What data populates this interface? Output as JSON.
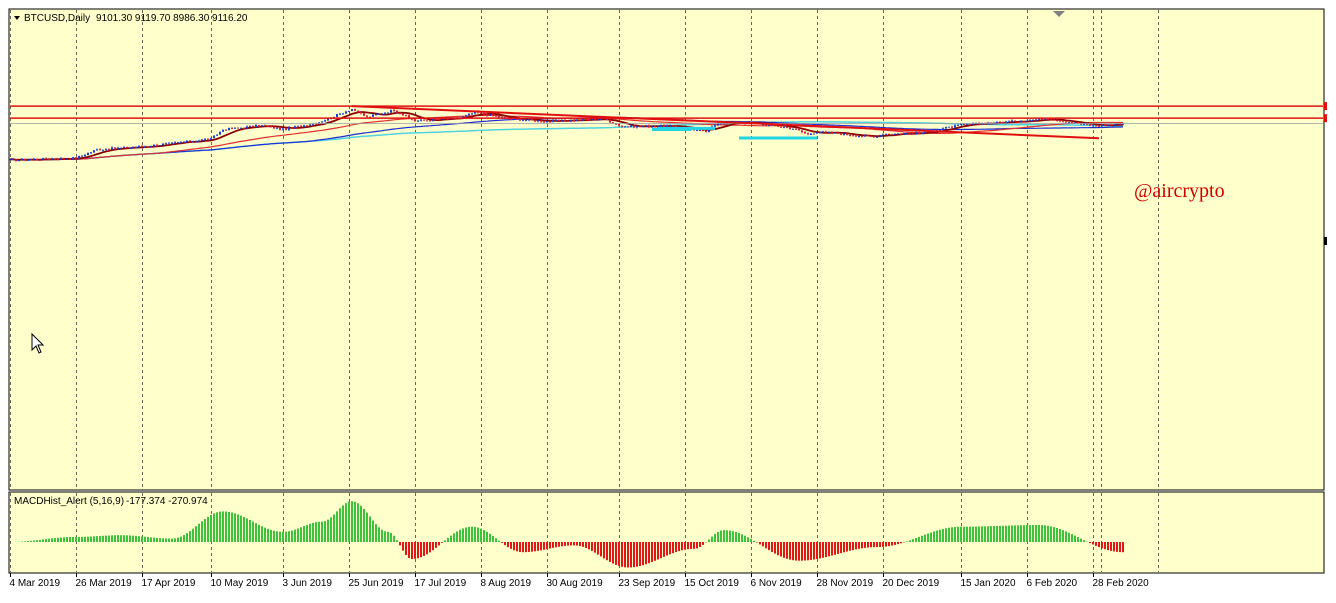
{
  "header": {
    "symbol_timeframe": "BTCUSD,Daily",
    "ohlc": "9101.30 9119.70 8986.30 9116.20"
  },
  "watermark": "@aircrypto",
  "indicator": {
    "name": "MACDHist_Alert (5,16,9)",
    "values": "-177.374 -270.974"
  },
  "colors": {
    "background": "#ffffcc",
    "bull_candle": "#1a3fd9",
    "bear_candle": "#d21f3c",
    "trendline": "#e01010",
    "ma_fast": "#8b0000",
    "ma_slow_red": "#e03030",
    "ma_blue": "#1e2fd0",
    "ma_cyan": "#4fd3e0",
    "hist_pos": "#3cc23c",
    "hist_neg": "#e01818",
    "support_line": "#22d4e4"
  },
  "chart_data": {
    "type": "candlestick",
    "title": "BTCUSD,Daily",
    "x_tick_labels": [
      "4 Mar 2019",
      "26 Mar 2019",
      "17 Apr 2019",
      "10 May 2019",
      "3 Jun 2019",
      "25 Jun 2019",
      "17 Jul 2019",
      "8 Aug 2019",
      "30 Aug 2019",
      "23 Sep 2019",
      "15 Oct 2019",
      "6 Nov 2019",
      "28 Nov 2019",
      "20 Dec 2019",
      "15 Jan 2020",
      "6 Feb 2020",
      "28 Feb 2020"
    ],
    "close_path": [
      {
        "date": "4 Mar 2019",
        "close": 3800
      },
      {
        "date": "26 Mar 2019",
        "close": 4000
      },
      {
        "date": "2 Apr 2019",
        "close": 4900
      },
      {
        "date": "17 Apr 2019",
        "close": 5250
      },
      {
        "date": "10 May 2019",
        "close": 6300
      },
      {
        "date": "14 May 2019",
        "close": 7900
      },
      {
        "date": "27 May 2019",
        "close": 8700
      },
      {
        "date": "3 Jun 2019",
        "close": 7900
      },
      {
        "date": "15 Jun 2019",
        "close": 9400
      },
      {
        "date": "26 Jun 2019",
        "close": 12900
      },
      {
        "date": "1 Jul 2019",
        "close": 10600
      },
      {
        "date": "10 Jul 2019",
        "close": 12600
      },
      {
        "date": "17 Jul 2019",
        "close": 9700
      },
      {
        "date": "1 Aug 2019",
        "close": 10400
      },
      {
        "date": "6 Aug 2019",
        "close": 11900
      },
      {
        "date": "17 Aug 2019",
        "close": 10200
      },
      {
        "date": "30 Aug 2019",
        "close": 9600
      },
      {
        "date": "18 Sep 2019",
        "close": 10200
      },
      {
        "date": "24 Sep 2019",
        "close": 8500
      },
      {
        "date": "10 Oct 2019",
        "close": 8600
      },
      {
        "date": "22 Oct 2019",
        "close": 7500
      },
      {
        "date": "26 Oct 2019",
        "close": 9300
      },
      {
        "date": "6 Nov 2019",
        "close": 9300
      },
      {
        "date": "20 Nov 2019",
        "close": 8100
      },
      {
        "date": "25 Nov 2019",
        "close": 7000
      },
      {
        "date": "28 Nov 2019",
        "close": 7500
      },
      {
        "date": "17 Dec 2019",
        "close": 6600
      },
      {
        "date": "20 Dec 2019",
        "close": 7150
      },
      {
        "date": "1 Jan 2020",
        "close": 7200
      },
      {
        "date": "15 Jan 2020",
        "close": 8800
      },
      {
        "date": "6 Feb 2020",
        "close": 9800
      },
      {
        "date": "13 Feb 2020",
        "close": 10300
      },
      {
        "date": "28 Feb 2020",
        "close": 8600
      },
      {
        "date": "9 Mar 2020",
        "close": 9116.2
      }
    ],
    "horizontal_lines": [
      13800,
      10350
    ],
    "trendline": {
      "from": {
        "date": "26 Jun 2019",
        "price": 13800
      },
      "to": {
        "date": "1 Mar 2020",
        "price": 6400
      }
    },
    "macd_hist": [
      {
        "date": "4 Mar 2019",
        "value": 0
      },
      {
        "date": "26 Mar 2019",
        "value": 30
      },
      {
        "date": "10 Apr 2019",
        "value": 40
      },
      {
        "date": "27 Apr 2019",
        "value": 20
      },
      {
        "date": "14 May 2019",
        "value": 180
      },
      {
        "date": "3 Jun 2019",
        "value": 60
      },
      {
        "date": "16 Jun 2019",
        "value": 120
      },
      {
        "date": "26 Jun 2019",
        "value": 240
      },
      {
        "date": "8 Jul 2019",
        "value": 60
      },
      {
        "date": "16 Jul 2019",
        "value": -100
      },
      {
        "date": "5 Aug 2019",
        "value": 90
      },
      {
        "date": "22 Aug 2019",
        "value": -60
      },
      {
        "date": "8 Sep 2019",
        "value": -20
      },
      {
        "date": "26 Sep 2019",
        "value": -150
      },
      {
        "date": "18 Oct 2019",
        "value": -40
      },
      {
        "date": "28 Oct 2019",
        "value": 70
      },
      {
        "date": "22 Nov 2019",
        "value": -110
      },
      {
        "date": "18 Dec 2019",
        "value": -30
      },
      {
        "date": "15 Jan 2020",
        "value": 90
      },
      {
        "date": "10 Feb 2020",
        "value": 100
      },
      {
        "date": "9 Mar 2020",
        "value": -60
      }
    ]
  }
}
